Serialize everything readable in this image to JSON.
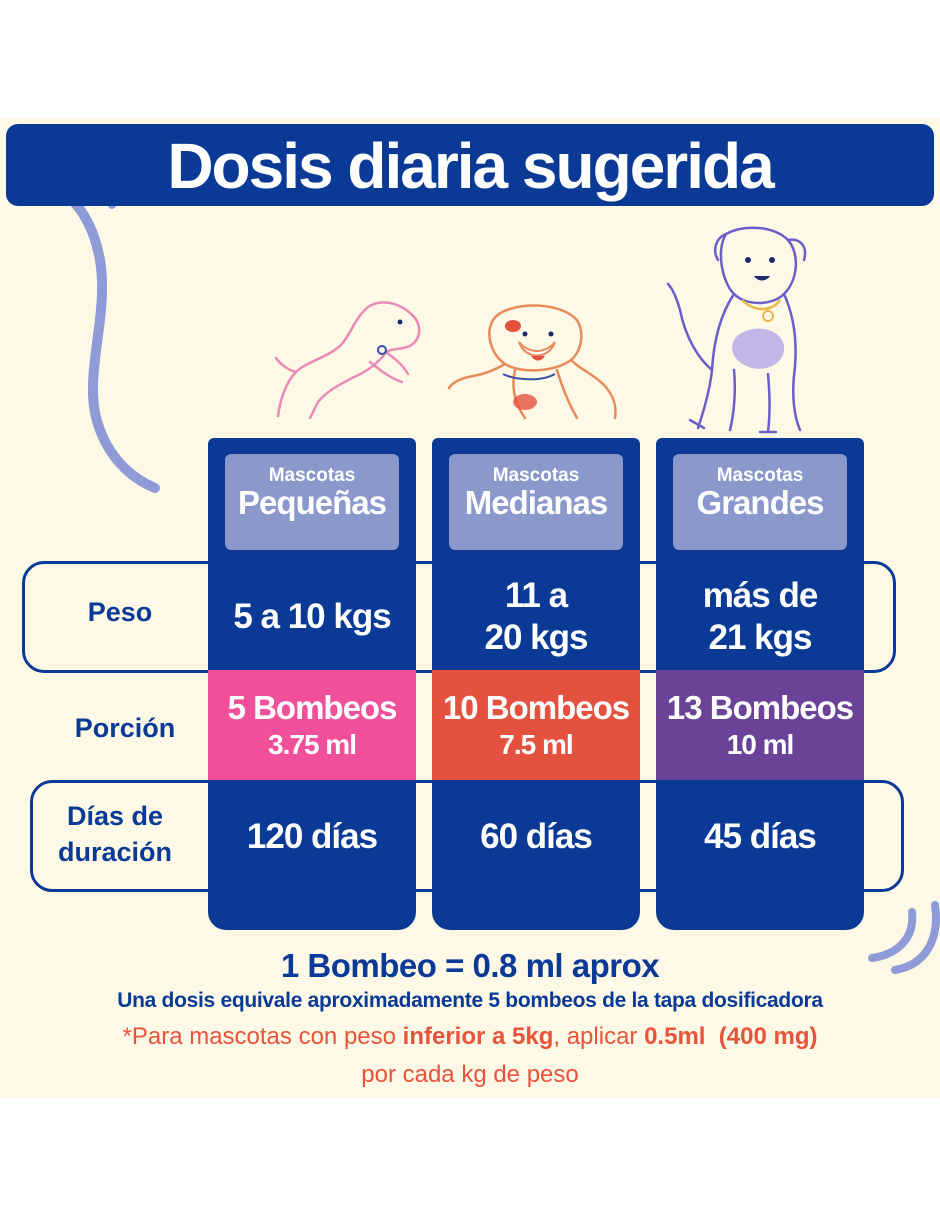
{
  "title": "Dosis diaria sugerida",
  "columns": [
    {
      "small": "Mascotas",
      "big": "Pequeñas",
      "peso": [
        "5 a 10 kgs"
      ],
      "bombeos": "5 Bombeos",
      "ml": "3.75 ml",
      "dias": "120 días",
      "color": "#f0509a"
    },
    {
      "small": "Mascotas",
      "big": "Medianas",
      "peso": [
        "11 a",
        "20 kgs"
      ],
      "bombeos": "10 Bombeos",
      "ml": "7.5 ml",
      "dias": "60 días",
      "color": "#e4513e"
    },
    {
      "small": "Mascotas",
      "big": "Grandes",
      "peso": [
        "más de",
        "21 kgs"
      ],
      "bombeos": "13 Bombeos",
      "ml": "10 ml",
      "dias": "45 días",
      "color": "#6a4399"
    }
  ],
  "rows": {
    "peso": "Peso",
    "porcion": "Porción",
    "dias_line1": "Días de",
    "dias_line2": "duración"
  },
  "footer": {
    "line1": "1 Bombeo = 0.8 ml aprox",
    "line2": "Una dosis equivale aproximadamente 5 bombeos de la tapa dosificadora",
    "line3_a": "*Para mascotas con peso ",
    "line3_b": "inferior a 5kg",
    "line3_c": ", aplicar ",
    "line3_d": "0.5ml",
    "line3_e": "  (400 mg)",
    "line4": "por cada kg de peso"
  },
  "colors": {
    "navy": "#0a3a96",
    "header": "#8a98cc",
    "cream": "#fdf9e6",
    "accent": "#e8533b",
    "deco": "#8f9bd6"
  },
  "icons": [
    "small-dog-icon",
    "medium-dog-icon",
    "large-dog-icon"
  ]
}
